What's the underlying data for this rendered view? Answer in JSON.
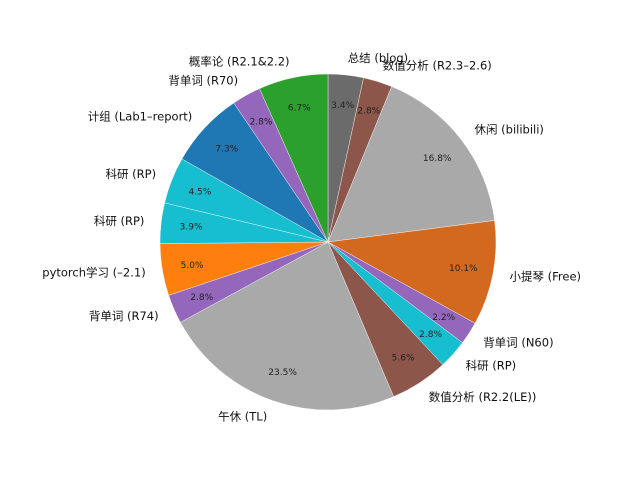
{
  "chart_data": {
    "type": "pie",
    "title": "",
    "start_angle_deg": 90,
    "direction": "clockwise",
    "slices": [
      {
        "label": "总结 (blog)",
        "percent": 3.4,
        "color": "#6b6b6b"
      },
      {
        "label": "数值分析 (R2.3–2.6)",
        "percent": 2.8,
        "color": "#8c564b"
      },
      {
        "label": "休闲 (bilibili)",
        "percent": 16.8,
        "color": "#a9a9a9"
      },
      {
        "label": "小提琴 (Free)",
        "percent": 10.1,
        "color": "#d2691e"
      },
      {
        "label": "背单词 (N60)",
        "percent": 2.2,
        "color": "#9467bd"
      },
      {
        "label": "科研 (RP)",
        "percent": 2.8,
        "color": "#17becf"
      },
      {
        "label": "数值分析 (R2.2(LE))",
        "percent": 5.6,
        "color": "#8c564b"
      },
      {
        "label": "午休 (TL)",
        "percent": 23.5,
        "color": "#a9a9a9"
      },
      {
        "label": "背单词 (R74)",
        "percent": 2.8,
        "color": "#9467bd"
      },
      {
        "label": "pytorch学习 (–2.1)",
        "percent": 5.0,
        "color": "#ff7f0e"
      },
      {
        "label": "科研 (RP)",
        "percent": 3.9,
        "color": "#17becf"
      },
      {
        "label": "科研 (RP)",
        "percent": 4.5,
        "color": "#17becf"
      },
      {
        "label": "计组 (Lab1–report)",
        "percent": 7.3,
        "color": "#1f77b4"
      },
      {
        "label": "背单词 (R70)",
        "percent": 2.8,
        "color": "#9467bd"
      },
      {
        "label": "概率论 (R2.1&2.2)",
        "percent": 6.7,
        "color": "#2ca02c"
      }
    ]
  }
}
